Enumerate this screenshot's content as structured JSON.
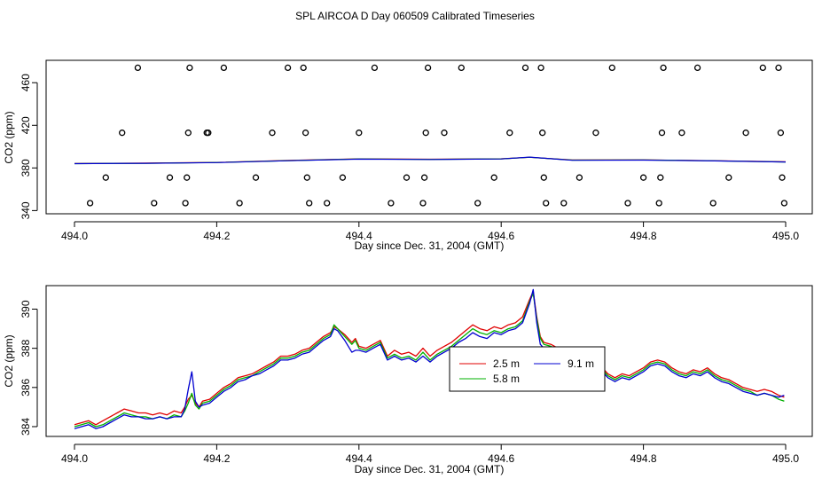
{
  "title": "SPL AIRCOA D  Day 060509  Calibrated Timeseries",
  "colors": {
    "red": "#e00000",
    "green": "#00b000",
    "blue": "#0000d0",
    "black": "#000000"
  },
  "chart_data": [
    {
      "type": "scatter",
      "name": "top-panel",
      "xlabel": "Day since Dec. 31, 2004 (GMT)",
      "ylabel": "CO2 (ppm)",
      "xlim": [
        494.0,
        495.0
      ],
      "ylim": [
        337,
        481
      ],
      "xticks": [
        494.0,
        494.2,
        494.4,
        494.6,
        494.8,
        495.0
      ],
      "xtick_labels": [
        "494.0",
        "494.2",
        "494.4",
        "494.6",
        "494.8",
        "495.0"
      ],
      "yticks": [
        340,
        380,
        420,
        460
      ],
      "ytick_labels": [
        "340",
        "380",
        "420",
        "460"
      ],
      "points": [
        [
          494.022,
          347
        ],
        [
          494.044,
          371
        ],
        [
          494.067,
          413
        ],
        [
          494.089,
          474
        ],
        [
          494.112,
          347
        ],
        [
          494.134,
          371
        ],
        [
          494.156,
          347
        ],
        [
          494.158,
          371
        ],
        [
          494.16,
          413
        ],
        [
          494.162,
          474
        ],
        [
          494.186,
          413
        ],
        [
          494.188,
          413
        ],
        [
          494.21,
          474
        ],
        [
          494.232,
          347
        ],
        [
          494.255,
          371
        ],
        [
          494.278,
          413
        ],
        [
          494.3,
          474
        ],
        [
          494.322,
          474
        ],
        [
          494.325,
          413
        ],
        [
          494.327,
          371
        ],
        [
          494.33,
          347
        ],
        [
          494.355,
          347
        ],
        [
          494.377,
          371
        ],
        [
          494.4,
          413
        ],
        [
          494.422,
          474
        ],
        [
          494.445,
          347
        ],
        [
          494.467,
          371
        ],
        [
          494.49,
          347
        ],
        [
          494.492,
          371
        ],
        [
          494.494,
          413
        ],
        [
          494.497,
          474
        ],
        [
          494.52,
          413
        ],
        [
          494.544,
          474
        ],
        [
          494.567,
          347
        ],
        [
          494.59,
          371
        ],
        [
          494.612,
          413
        ],
        [
          494.634,
          474
        ],
        [
          494.656,
          474
        ],
        [
          494.658,
          413
        ],
        [
          494.66,
          371
        ],
        [
          494.663,
          347
        ],
        [
          494.688,
          347
        ],
        [
          494.71,
          371
        ],
        [
          494.733,
          413
        ],
        [
          494.756,
          474
        ],
        [
          494.778,
          347
        ],
        [
          494.8,
          371
        ],
        [
          494.822,
          347
        ],
        [
          494.824,
          371
        ],
        [
          494.826,
          413
        ],
        [
          494.828,
          474
        ],
        [
          494.854,
          413
        ],
        [
          494.876,
          474
        ],
        [
          494.898,
          347
        ],
        [
          494.92,
          371
        ],
        [
          494.944,
          413
        ],
        [
          494.968,
          474
        ],
        [
          494.99,
          474
        ],
        [
          494.993,
          413
        ],
        [
          494.995,
          371
        ],
        [
          494.998,
          347
        ]
      ],
      "series": [
        {
          "name": "2.5 m",
          "color": "#e00000",
          "x": [
            494.0,
            494.1,
            494.2,
            494.3,
            494.4,
            494.5,
            494.6,
            494.64,
            494.7,
            494.8,
            494.9,
            495.0
          ],
          "y": [
            384.2,
            384.5,
            385.2,
            387.0,
            388.5,
            388.2,
            388.6,
            390.0,
            387.5,
            387.6,
            386.8,
            385.8
          ]
        },
        {
          "name": "5.8 m",
          "color": "#00b000",
          "x": [
            494.0,
            494.1,
            494.2,
            494.3,
            494.4,
            494.5,
            494.6,
            494.64,
            494.7,
            494.8,
            494.9,
            495.0
          ],
          "y": [
            384.0,
            384.4,
            385.1,
            386.9,
            388.4,
            388.0,
            388.5,
            390.0,
            387.4,
            387.5,
            386.7,
            385.6
          ]
        },
        {
          "name": "9.1 m",
          "color": "#0000d0",
          "x": [
            494.0,
            494.1,
            494.2,
            494.3,
            494.4,
            494.5,
            494.6,
            494.64,
            494.7,
            494.8,
            494.9,
            495.0
          ],
          "y": [
            384.0,
            384.4,
            385.0,
            386.8,
            388.3,
            387.9,
            388.4,
            390.2,
            387.2,
            387.4,
            386.6,
            385.6
          ]
        }
      ]
    },
    {
      "type": "line",
      "name": "bottom-panel",
      "xlabel": "Day since Dec. 31, 2004 (GMT)",
      "ylabel": "CO2 (ppm)",
      "xlim": [
        494.0,
        495.0
      ],
      "ylim": [
        383.5,
        391.2
      ],
      "xticks": [
        494.0,
        494.2,
        494.4,
        494.6,
        494.8,
        495.0
      ],
      "xtick_labels": [
        "494.0",
        "494.2",
        "494.4",
        "494.6",
        "494.8",
        "495.0"
      ],
      "yticks": [
        384,
        386,
        388,
        390
      ],
      "ytick_labels": [
        "384",
        "386",
        "388",
        "390"
      ],
      "legend": {
        "position": "center-right",
        "entries": [
          "2.5 m",
          "5.8 m",
          "9.1 m"
        ]
      },
      "x": [
        494.0,
        494.01,
        494.02,
        494.03,
        494.04,
        494.05,
        494.06,
        494.07,
        494.08,
        494.09,
        494.1,
        494.11,
        494.12,
        494.13,
        494.14,
        494.15,
        494.155,
        494.16,
        494.165,
        494.17,
        494.175,
        494.18,
        494.19,
        494.2,
        494.21,
        494.22,
        494.23,
        494.24,
        494.25,
        494.26,
        494.27,
        494.28,
        494.29,
        494.3,
        494.31,
        494.32,
        494.33,
        494.34,
        494.35,
        494.36,
        494.365,
        494.37,
        494.38,
        494.39,
        494.395,
        494.4,
        494.41,
        494.42,
        494.43,
        494.44,
        494.45,
        494.46,
        494.47,
        494.48,
        494.49,
        494.5,
        494.51,
        494.52,
        494.53,
        494.54,
        494.55,
        494.56,
        494.57,
        494.58,
        494.59,
        494.6,
        494.61,
        494.62,
        494.63,
        494.64,
        494.645,
        494.65,
        494.655,
        494.66,
        494.67,
        494.68,
        494.69,
        494.7,
        494.71,
        494.72,
        494.73,
        494.74,
        494.75,
        494.76,
        494.77,
        494.78,
        494.79,
        494.8,
        494.81,
        494.82,
        494.83,
        494.84,
        494.85,
        494.86,
        494.87,
        494.88,
        494.89,
        494.9,
        494.91,
        494.92,
        494.93,
        494.94,
        494.95,
        494.96,
        494.97,
        494.98,
        494.99,
        494.998
      ],
      "series": [
        {
          "name": "2.5 m",
          "color": "#e00000",
          "values": [
            384.1,
            384.2,
            384.3,
            384.1,
            384.3,
            384.5,
            384.7,
            384.9,
            384.8,
            384.7,
            384.7,
            384.6,
            384.7,
            384.6,
            384.8,
            384.7,
            385.0,
            385.4,
            385.6,
            385.2,
            385.0,
            385.3,
            385.4,
            385.7,
            386.0,
            386.2,
            386.5,
            386.6,
            386.7,
            386.9,
            387.1,
            387.3,
            387.6,
            387.6,
            387.7,
            387.9,
            388.0,
            388.3,
            388.6,
            388.8,
            389.1,
            389.0,
            388.7,
            388.3,
            388.5,
            388.1,
            388.0,
            388.2,
            388.4,
            387.6,
            387.9,
            387.7,
            387.8,
            387.6,
            388.0,
            387.6,
            387.9,
            388.1,
            388.3,
            388.6,
            388.9,
            389.2,
            389.0,
            388.9,
            389.1,
            389.0,
            389.2,
            389.3,
            389.6,
            390.5,
            390.9,
            389.6,
            388.6,
            388.3,
            388.2,
            388.0,
            387.8,
            387.6,
            387.5,
            387.3,
            387.0,
            387.1,
            386.7,
            386.5,
            386.7,
            386.6,
            386.8,
            387.0,
            387.3,
            387.4,
            387.3,
            387.0,
            386.8,
            386.7,
            386.9,
            386.8,
            387.0,
            386.7,
            386.5,
            386.4,
            386.2,
            386.0,
            385.9,
            385.8,
            385.9,
            385.8,
            385.6,
            385.5
          ]
        },
        {
          "name": "5.8 m",
          "color": "#00b000",
          "values": [
            384.0,
            384.1,
            384.2,
            384.0,
            384.1,
            384.3,
            384.5,
            384.7,
            384.6,
            384.5,
            384.5,
            384.4,
            384.5,
            384.4,
            384.6,
            384.5,
            384.8,
            385.2,
            385.7,
            385.1,
            384.9,
            385.2,
            385.3,
            385.6,
            385.9,
            386.1,
            386.4,
            386.5,
            386.6,
            386.8,
            387.0,
            387.2,
            387.5,
            387.5,
            387.6,
            387.8,
            387.9,
            388.2,
            388.5,
            388.7,
            389.2,
            389.0,
            388.6,
            388.2,
            388.4,
            388.0,
            387.9,
            388.1,
            388.3,
            387.5,
            387.7,
            387.5,
            387.6,
            387.4,
            387.8,
            387.4,
            387.7,
            387.9,
            388.1,
            388.4,
            388.7,
            389.0,
            388.8,
            388.7,
            388.9,
            388.8,
            389.0,
            389.1,
            389.4,
            390.4,
            390.8,
            389.5,
            388.5,
            388.2,
            388.1,
            387.9,
            387.7,
            387.5,
            387.4,
            387.2,
            386.9,
            387.0,
            386.6,
            386.4,
            386.6,
            386.5,
            386.7,
            386.9,
            387.2,
            387.3,
            387.2,
            386.9,
            386.7,
            386.6,
            386.8,
            386.7,
            386.9,
            386.6,
            386.4,
            386.3,
            386.1,
            385.9,
            385.8,
            385.6,
            385.7,
            385.6,
            385.4,
            385.3
          ]
        },
        {
          "name": "9.1 m",
          "color": "#0000d0",
          "values": [
            383.9,
            384.0,
            384.1,
            383.9,
            384.0,
            384.2,
            384.4,
            384.6,
            384.5,
            384.5,
            384.4,
            384.4,
            384.5,
            384.4,
            384.5,
            384.5,
            384.9,
            385.9,
            386.8,
            385.3,
            385.0,
            385.1,
            385.2,
            385.5,
            385.8,
            386.0,
            386.3,
            386.4,
            386.6,
            386.7,
            386.9,
            387.1,
            387.4,
            387.4,
            387.5,
            387.7,
            387.8,
            388.1,
            388.4,
            388.6,
            389.0,
            388.9,
            388.4,
            387.8,
            387.9,
            387.9,
            387.8,
            388.0,
            388.2,
            387.4,
            387.6,
            387.4,
            387.5,
            387.3,
            387.6,
            387.3,
            387.6,
            387.8,
            388.0,
            388.3,
            388.5,
            388.8,
            388.6,
            388.5,
            388.8,
            388.7,
            388.9,
            389.0,
            389.3,
            390.3,
            391.0,
            389.3,
            388.2,
            388.0,
            388.0,
            387.8,
            387.6,
            387.4,
            387.3,
            387.1,
            386.8,
            386.9,
            386.5,
            386.3,
            386.5,
            386.4,
            386.6,
            386.8,
            387.1,
            387.2,
            387.1,
            386.8,
            386.6,
            386.5,
            386.7,
            386.6,
            386.8,
            386.5,
            386.3,
            386.2,
            386.0,
            385.8,
            385.7,
            385.6,
            385.7,
            385.6,
            385.5,
            385.6
          ]
        }
      ]
    }
  ]
}
